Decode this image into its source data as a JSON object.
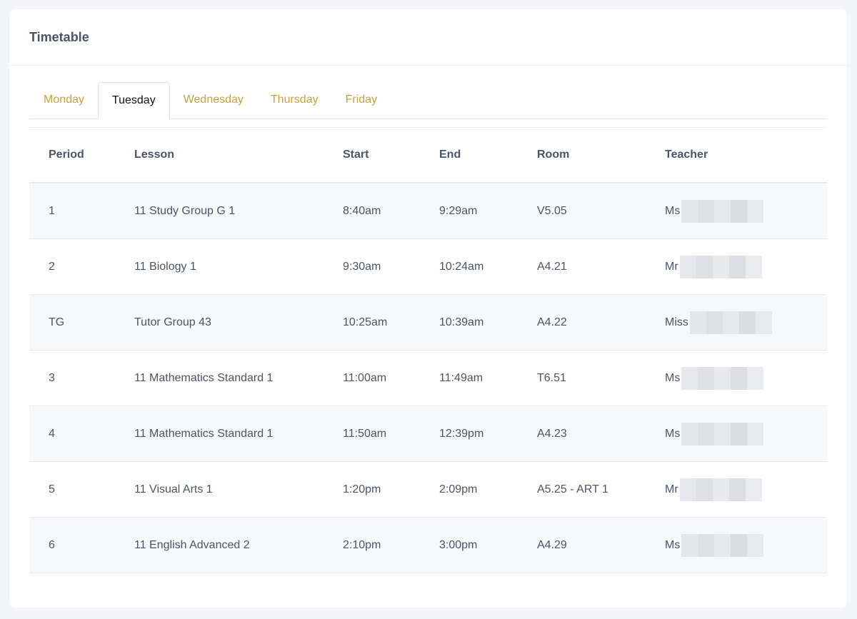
{
  "header": {
    "title": "Timetable"
  },
  "tabs": [
    {
      "label": "Monday"
    },
    {
      "label": "Tuesday"
    },
    {
      "label": "Wednesday"
    },
    {
      "label": "Thursday"
    },
    {
      "label": "Friday"
    }
  ],
  "active_tab": "Tuesday",
  "colors": {
    "tab_accent": "#c9a13a",
    "text": "#4a5568",
    "row_stripe": "#f7f8fa"
  },
  "table": {
    "headers": [
      "Period",
      "Lesson",
      "Start",
      "End",
      "Room",
      "Teacher"
    ],
    "rows": [
      {
        "period": "1",
        "lesson": "11 Study Group G 1",
        "start": "8:40am",
        "end": "9:29am",
        "room": "V5.05",
        "teacher": "Ms"
      },
      {
        "period": "2",
        "lesson": "11 Biology 1",
        "start": "9:30am",
        "end": "10:24am",
        "room": "A4.21",
        "teacher": "Mr"
      },
      {
        "period": "TG",
        "lesson": "Tutor Group 43",
        "start": "10:25am",
        "end": "10:39am",
        "room": "A4.22",
        "teacher": "Miss"
      },
      {
        "period": "3",
        "lesson": "11 Mathematics Standard 1",
        "start": "11:00am",
        "end": "11:49am",
        "room": "T6.51",
        "teacher": "Ms"
      },
      {
        "period": "4",
        "lesson": "11 Mathematics Standard 1",
        "start": "11:50am",
        "end": "12:39pm",
        "room": "A4.23",
        "teacher": "Ms"
      },
      {
        "period": "5",
        "lesson": "11 Visual Arts 1",
        "start": "1:20pm",
        "end": "2:09pm",
        "room": "A5.25 - ART 1",
        "teacher": "Mr"
      },
      {
        "period": "6",
        "lesson": "11 English Advanced 2",
        "start": "2:10pm",
        "end": "3:00pm",
        "room": "A4.29",
        "teacher": "Ms"
      }
    ]
  }
}
